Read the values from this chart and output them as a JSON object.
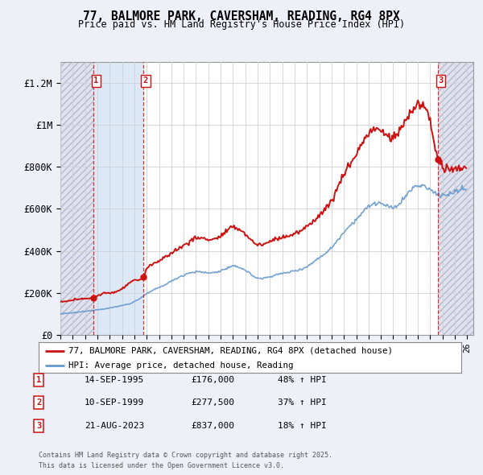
{
  "title": "77, BALMORE PARK, CAVERSHAM, READING, RG4 8PX",
  "subtitle": "Price paid vs. HM Land Registry's House Price Index (HPI)",
  "ylabel_ticks": [
    "£0",
    "£200K",
    "£400K",
    "£600K",
    "£800K",
    "£1M",
    "£1.2M"
  ],
  "ytick_vals": [
    0,
    200000,
    400000,
    600000,
    800000,
    1000000,
    1200000
  ],
  "ylim": [
    0,
    1300000
  ],
  "xlim_start": 1993.0,
  "xlim_end": 2026.5,
  "background_color": "#eef0f8",
  "plot_bg_color": "#ffffff",
  "grid_color": "#d0d0d8",
  "sale_color": "#cc1111",
  "hpi_color": "#6699cc",
  "hpi_fill_color": "#c8ddf0",
  "between_fill_color": "#dce8f5",
  "hatch_fill_color": "#dde0ec",
  "legend_sale_label": "77, BALMORE PARK, CAVERSHAM, READING, RG4 8PX (detached house)",
  "legend_hpi_label": "HPI: Average price, detached house, Reading",
  "transactions": [
    {
      "num": 1,
      "date_label": "14-SEP-1995",
      "price_label": "£176,000",
      "pct_label": "48% ↑ HPI",
      "year": 1995.71,
      "price": 176000
    },
    {
      "num": 2,
      "date_label": "10-SEP-1999",
      "price_label": "£277,500",
      "pct_label": "37% ↑ HPI",
      "year": 1999.71,
      "price": 277500
    },
    {
      "num": 3,
      "date_label": "21-AUG-2023",
      "price_label": "£837,000",
      "pct_label": "18% ↑ HPI",
      "year": 2023.64,
      "price": 837000
    }
  ],
  "footer_line1": "Contains HM Land Registry data © Crown copyright and database right 2025.",
  "footer_line2": "This data is licensed under the Open Government Licence v3.0."
}
